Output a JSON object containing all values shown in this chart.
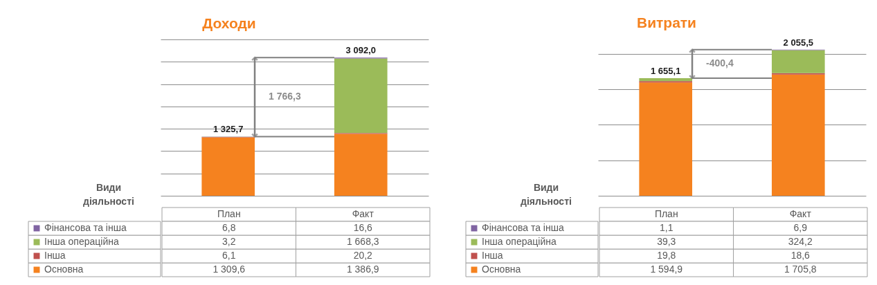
{
  "chart_data": [
    {
      "type": "bar",
      "title": "Доходи",
      "legend_title": "Види діяльності",
      "categories": [
        "План",
        "Факт"
      ],
      "stacked": true,
      "series": [
        {
          "name": "Основна",
          "color": "#f5821f",
          "values": [
            1309.6,
            1386.9
          ],
          "value_labels": [
            "1 309,6",
            "1 386,9"
          ]
        },
        {
          "name": "Інша",
          "color": "#c0504d",
          "values": [
            6.1,
            20.2
          ],
          "value_labels": [
            "6,1",
            "20,2"
          ]
        },
        {
          "name": "Інша операційна",
          "color": "#9bbb59",
          "values": [
            3.2,
            1668.3
          ],
          "value_labels": [
            "3,2",
            "1 668,3"
          ]
        },
        {
          "name": "Фінансова та інша",
          "color": "#8064a2",
          "values": [
            6.8,
            16.6
          ],
          "value_labels": [
            "6,8",
            "16,6"
          ]
        }
      ],
      "grid": "y",
      "tick_labels": "x",
      "legend": "bottom",
      "totals": [
        "1 325,7",
        "3 092,0"
      ],
      "annotations": [
        "1 766,3"
      ]
    },
    {
      "type": "bar",
      "title": "Витрати",
      "legend_title": "Види діяльності",
      "categories": [
        "План",
        "Факт"
      ],
      "stacked": true,
      "series": [
        {
          "name": "Основна",
          "color": "#f5821f",
          "values": [
            1594.9,
            1705.8
          ],
          "value_labels": [
            "1 594,9",
            "1 705,8"
          ]
        },
        {
          "name": "Інша",
          "color": "#c0504d",
          "values": [
            19.8,
            18.6
          ],
          "value_labels": [
            "19,8",
            "18,6"
          ]
        },
        {
          "name": "Інша операційна",
          "color": "#9bbb59",
          "values": [
            39.3,
            324.2
          ],
          "value_labels": [
            "39,3",
            "324,2"
          ]
        },
        {
          "name": "Фінансова та інша",
          "color": "#8064a2",
          "values": [
            1.1,
            6.9
          ],
          "value_labels": [
            "1,1",
            "6,9"
          ]
        }
      ],
      "grid": "y",
      "tick_labels": "x",
      "legend": "bottom",
      "totals": [
        "1 655,1",
        "2 055,5"
      ],
      "annotations": [
        "-400,4"
      ]
    }
  ]
}
